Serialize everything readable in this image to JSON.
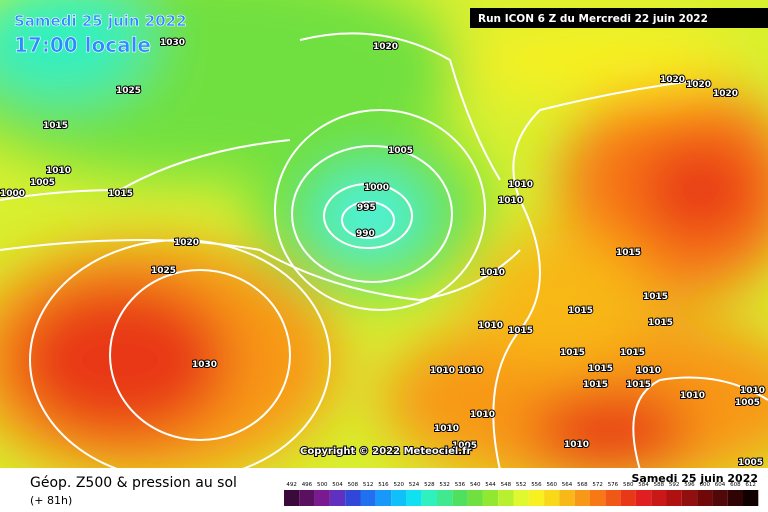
{
  "header": {
    "date": "Samedi 25 juin 2022",
    "time": "17:00 locale",
    "run": "Run ICON 6 Z du Mercredi 22 juin 2022"
  },
  "copyright": "Copyright © 2022 Meteociel.fr",
  "isobar_labels": [
    "1030",
    "1025",
    "1020",
    "1015",
    "1010",
    "1005",
    "1000",
    "1015",
    "1020",
    "1025",
    "1030",
    "1005",
    "1000",
    "995",
    "990",
    "1010",
    "1010",
    "1010",
    "1015",
    "1020",
    "1020",
    "1020",
    "1010",
    "1015",
    "1015",
    "1015",
    "1015",
    "1015",
    "1015",
    "1015",
    "1010",
    "1010",
    "1015",
    "1010",
    "1010",
    "1010",
    "1005",
    "1010",
    "1010",
    "1005",
    "1010",
    "1005",
    "1015"
  ],
  "footer": {
    "title": "Géop. Z500 & pression au sol",
    "lead": "(+ 81h)",
    "date": "Samedi 25 juin 2022"
  },
  "scale": {
    "labels": [
      492,
      496,
      500,
      504,
      508,
      512,
      516,
      520,
      524,
      528,
      532,
      536,
      540,
      544,
      548,
      552,
      556,
      560,
      564,
      568,
      572,
      576,
      580,
      584,
      588,
      592,
      596,
      600,
      604,
      608,
      612
    ],
    "colors": [
      "#3a0a3a",
      "#5a1060",
      "#7a1a90",
      "#6030c0",
      "#3048d8",
      "#2070f0",
      "#1898f8",
      "#10c0f8",
      "#10e0f0",
      "#30f0c0",
      "#40e890",
      "#50e060",
      "#70e040",
      "#90e830",
      "#b8f030",
      "#e0f830",
      "#f8f020",
      "#f8d818",
      "#f8b818",
      "#f89818",
      "#f87818",
      "#f05818",
      "#e83818",
      "#e02020",
      "#c81818",
      "#b01010",
      "#901010",
      "#700808",
      "#500808",
      "#300404",
      "#100000"
    ]
  }
}
